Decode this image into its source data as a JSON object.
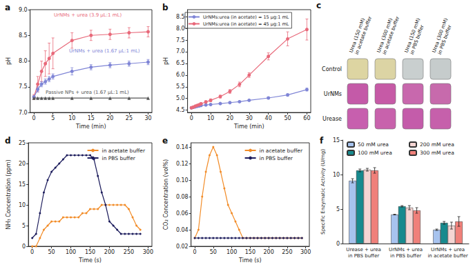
{
  "chart_data": [
    {
      "type": "line",
      "title": "a",
      "x_label": "Time (min)",
      "y_label": "pH",
      "xlim": [
        -1,
        31
      ],
      "xticks": [
        0,
        5,
        10,
        15,
        20,
        25,
        30
      ],
      "ylim": [
        7.0,
        9.0
      ],
      "yticks": [
        {
          "value": 7.0,
          "label": "7.0"
        },
        7.5,
        {
          "value": 8.0,
          "label": "8.0"
        },
        8.5,
        {
          "value": 9.0,
          "label": "9.0"
        }
      ],
      "grid": false,
      "series": [
        {
          "name": "UrNMs + urea (3.9 μL:1 mL)",
          "color": "#e8697a",
          "marker": "circle",
          "x": [
            0,
            1,
            2,
            3,
            4,
            5,
            10,
            15,
            20,
            25,
            30
          ],
          "values": [
            7.3,
            7.55,
            7.8,
            7.95,
            8.05,
            8.15,
            8.4,
            8.5,
            8.52,
            8.55,
            8.57
          ],
          "error": [
            0.05,
            0.15,
            0.2,
            0.25,
            0.3,
            0.3,
            0.15,
            0.1,
            0.1,
            0.1,
            0.1
          ]
        },
        {
          "name": "UrNMs + urea (1.67 μL:1 mL)",
          "color": "#7f85d6",
          "marker": "circle",
          "x": [
            0,
            1,
            2,
            3,
            4,
            5,
            10,
            15,
            20,
            25,
            30
          ],
          "values": [
            7.3,
            7.45,
            7.55,
            7.6,
            7.65,
            7.7,
            7.8,
            7.88,
            7.92,
            7.95,
            7.98
          ],
          "error": [
            0.03,
            0.05,
            0.05,
            0.05,
            0.05,
            0.05,
            0.07,
            0.05,
            0.05,
            0.05,
            0.05
          ]
        },
        {
          "name": "Passive NPs + urea (1.67 μL:1 mL)",
          "color": "#555555",
          "marker": "triangle",
          "x": [
            0,
            1,
            2,
            3,
            4,
            5,
            10,
            15,
            20,
            25,
            30
          ],
          "values": [
            7.28,
            7.28,
            7.28,
            7.28,
            7.28,
            7.28,
            7.28,
            7.28,
            7.28,
            7.28,
            7.28
          ]
        }
      ]
    },
    {
      "type": "line",
      "title": "b",
      "x_label": "Time (min)",
      "y_label": "pH",
      "xlim": [
        -2,
        62
      ],
      "xticks": [
        0,
        10,
        20,
        30,
        40,
        50,
        60
      ],
      "ylim": [
        4.4,
        8.8
      ],
      "yticks": [
        4.5,
        {
          "value": 5.0,
          "label": "5.0"
        },
        5.5,
        {
          "value": 6.0,
          "label": "6.0"
        },
        6.5,
        {
          "value": 7.0,
          "label": "7.0"
        },
        7.5,
        {
          "value": 8.0,
          "label": "8.0"
        },
        8.5
      ],
      "grid": false,
      "legend": "top-left",
      "series": [
        {
          "name": "UrNMs:urea (in acetate) = 15 μg:1 mL",
          "color": "#7f85d6",
          "marker": "circle",
          "x": [
            0,
            1,
            2,
            3,
            4,
            5,
            7.5,
            10,
            15,
            20,
            25,
            30,
            40,
            50,
            60
          ],
          "values": [
            4.6,
            4.62,
            4.64,
            4.66,
            4.68,
            4.7,
            4.72,
            4.74,
            4.78,
            4.82,
            4.86,
            4.92,
            5.02,
            5.15,
            5.38
          ],
          "error": [
            0.03,
            0.03,
            0.03,
            0.03,
            0.03,
            0.03,
            0.03,
            0.03,
            0.03,
            0.03,
            0.03,
            0.03,
            0.04,
            0.05,
            0.06
          ]
        },
        {
          "name": "UrNMs:urea (in acetate) = 45 μg:1 mL",
          "color": "#e8697a",
          "marker": "circle",
          "x": [
            0,
            1,
            2,
            3,
            4,
            5,
            7.5,
            10,
            15,
            20,
            25,
            30,
            40,
            50,
            60
          ],
          "values": [
            4.6,
            4.63,
            4.67,
            4.7,
            4.73,
            4.77,
            4.85,
            4.92,
            5.08,
            5.3,
            5.6,
            6.0,
            6.8,
            7.55,
            7.95
          ],
          "error": [
            0.03,
            0.03,
            0.03,
            0.04,
            0.04,
            0.05,
            0.05,
            0.06,
            0.06,
            0.08,
            0.1,
            0.1,
            0.15,
            0.3,
            0.45
          ]
        }
      ]
    },
    {
      "type": "table",
      "title": "c",
      "columns": [
        "Urea (150 mM)\nin acetate buffer",
        "Urea (300 mM)\nin acetate buffer",
        "Urea (150 mM)\nin PBS buffer",
        "Urea (300 mM)\nin PBS buffer"
      ],
      "rows": [
        {
          "label": "Control",
          "colors": [
            "#ddd5a2",
            "#dcd4a4",
            "#c9cfcf",
            "#c6cccc"
          ]
        },
        {
          "label": "UrNMs",
          "colors": [
            "#c45aa8",
            "#c65aa6",
            "#c868ad",
            "#c76aac"
          ]
        },
        {
          "label": "Urease",
          "colors": [
            "#c75fae",
            "#c862ac",
            "#c45caa",
            "#c660ab"
          ]
        }
      ]
    },
    {
      "type": "line",
      "title": "d",
      "x_label": "Time (s)",
      "y_label": "NH₃ Concentration (ppm)",
      "xlim": [
        -10,
        310
      ],
      "xticks": [
        0,
        50,
        100,
        150,
        200,
        250,
        300
      ],
      "ylim": [
        0,
        25
      ],
      "yticks": [
        0,
        5,
        10,
        15,
        20,
        25
      ],
      "grid": false,
      "legend": "top-right",
      "series": [
        {
          "name": "in acetate buffer",
          "color": "#f28c28",
          "marker": "circle",
          "x": [
            0,
            10,
            20,
            30,
            40,
            50,
            60,
            70,
            80,
            90,
            100,
            110,
            120,
            130,
            140,
            150,
            160,
            170,
            180,
            190,
            200,
            210,
            220,
            230,
            240,
            250,
            260,
            270,
            280
          ],
          "values": [
            0,
            0,
            2,
            4,
            5,
            6,
            6,
            6,
            7,
            7,
            7,
            7,
            7,
            8,
            8,
            9,
            9,
            9,
            10,
            10,
            10,
            10,
            10,
            10,
            10,
            9,
            7,
            5,
            4
          ]
        },
        {
          "name": "in PBS buffer",
          "color": "#1c1c5c",
          "marker": "circle",
          "x": [
            0,
            10,
            20,
            30,
            40,
            50,
            60,
            70,
            80,
            90,
            100,
            110,
            120,
            130,
            140,
            150,
            160,
            170,
            180,
            190,
            200,
            210,
            220,
            230,
            240,
            250,
            260,
            270,
            280
          ],
          "values": [
            2,
            3,
            8,
            13,
            16,
            18,
            19,
            20,
            21,
            22,
            22,
            22,
            22,
            22,
            22,
            22,
            21,
            17,
            13,
            10,
            6,
            5,
            4,
            3,
            3,
            3,
            3,
            3,
            3
          ]
        }
      ]
    },
    {
      "type": "line",
      "title": "e",
      "x_label": "Time (s)",
      "y_label": "CO₂ Concentration (vol%)",
      "xlim": [
        -10,
        310
      ],
      "xticks": [
        0,
        50,
        100,
        150,
        200,
        250,
        300
      ],
      "ylim": [
        0.02,
        0.145
      ],
      "yticks": [
        0.02,
        0.04,
        0.06,
        0.08,
        {
          "value": 0.1,
          "label": "0.10"
        },
        0.12,
        0.14
      ],
      "grid": false,
      "legend": "top-right",
      "series": [
        {
          "name": "in acetate buffer",
          "color": "#f28c28",
          "marker": "circle",
          "x": [
            0,
            10,
            20,
            30,
            40,
            50,
            60,
            70,
            80,
            90,
            100,
            110,
            120,
            130,
            140,
            150,
            160,
            170,
            180,
            190,
            200,
            210,
            220,
            230,
            240,
            250,
            260,
            270,
            280,
            290
          ],
          "values": [
            0.03,
            0.04,
            0.08,
            0.11,
            0.13,
            0.14,
            0.13,
            0.11,
            0.09,
            0.07,
            0.06,
            0.05,
            0.04,
            0.03,
            0.03,
            0.03,
            0.03,
            0.03,
            0.03,
            0.03,
            0.03,
            0.03,
            0.03,
            0.03,
            0.03,
            0.03,
            0.03,
            0.03,
            0.03,
            0.03
          ]
        },
        {
          "name": "in PBS buffer",
          "color": "#1c1c5c",
          "marker": "circle",
          "x": [
            0,
            10,
            20,
            30,
            40,
            50,
            60,
            70,
            80,
            90,
            100,
            110,
            120,
            130,
            140,
            150,
            160,
            170,
            180,
            190,
            200,
            210,
            220,
            230,
            240,
            250,
            260,
            270,
            280,
            290
          ],
          "values": [
            0.03,
            0.03,
            0.03,
            0.03,
            0.03,
            0.03,
            0.03,
            0.03,
            0.03,
            0.03,
            0.03,
            0.03,
            0.03,
            0.03,
            0.03,
            0.03,
            0.03,
            0.03,
            0.03,
            0.03,
            0.03,
            0.03,
            0.03,
            0.03,
            0.03,
            0.03,
            0.03,
            0.03,
            0.03,
            0.03
          ]
        }
      ]
    },
    {
      "type": "bar",
      "title": "f",
      "y_label": "Specific Enzymatic Activity (U/mg)",
      "categories": [
        "Urease + urea\nin PBS buffer",
        "UrNMs + urea\nin PBS buffer",
        "UrNMs + urea\nin acetate buffer"
      ],
      "ylim": [
        0,
        15
      ],
      "yticks": [
        0,
        5,
        10,
        15
      ],
      "grid": false,
      "legend": "top",
      "series": [
        {
          "name": "50 mM urea",
          "color": "#a7c3ee",
          "values": [
            9.1,
            4.2,
            2.0
          ],
          "error": [
            0.3,
            0.05,
            0.1
          ]
        },
        {
          "name": "100 mM urea",
          "color": "#178a8e",
          "values": [
            10.6,
            5.4,
            3.0
          ],
          "error": [
            0.2,
            0.1,
            0.2
          ]
        },
        {
          "name": "200 mM urea",
          "color": "#f5d5d3",
          "values": [
            10.7,
            5.2,
            2.6
          ],
          "error": [
            0.2,
            0.3,
            0.5
          ]
        },
        {
          "name": "300 mM urea",
          "color": "#f0807a",
          "values": [
            10.6,
            4.8,
            3.2
          ],
          "error": [
            0.4,
            0.4,
            0.7
          ]
        }
      ]
    }
  ]
}
